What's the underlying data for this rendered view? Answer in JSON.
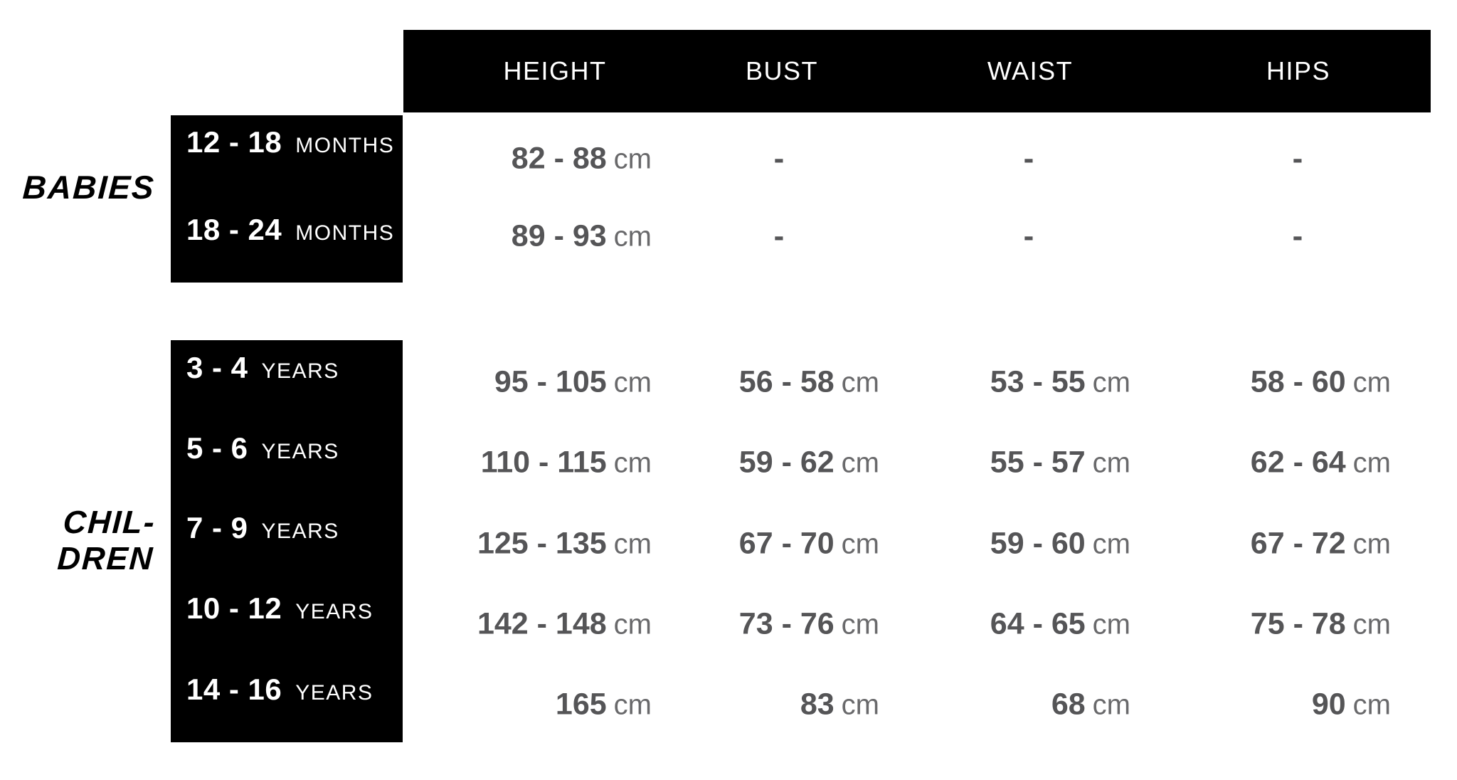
{
  "colors": {
    "background": "#ffffff",
    "header_bg": "#000000",
    "header_text": "#ffffff",
    "group_box_bg": "#000000",
    "group_box_text": "#ffffff",
    "value_number": "#555557",
    "value_unit": "#69696b",
    "section_label": "#000000"
  },
  "headers": [
    "HEIGHT",
    "BUST",
    "WAIST",
    "HIPS"
  ],
  "babies": {
    "section_label": "BABIES",
    "rows": [
      {
        "size": "12 - 18",
        "size_unit": "MONTHS",
        "height": "82 - 88",
        "height_unit": "cm",
        "bust": "-",
        "waist": "-",
        "hips": "-"
      },
      {
        "size": "18 - 24",
        "size_unit": "MONTHS",
        "height": "89 - 93",
        "height_unit": "cm",
        "bust": "-",
        "waist": "-",
        "hips": "-"
      }
    ]
  },
  "children": {
    "section_label_lines": [
      "CHIL-",
      "DREN"
    ],
    "rows": [
      {
        "size": "3 - 4",
        "size_unit": "YEARS",
        "height": "95 - 105",
        "height_unit": "cm",
        "bust": "56 - 58",
        "bust_unit": "cm",
        "waist": "53 - 55",
        "waist_unit": "cm",
        "hips": "58 - 60",
        "hips_unit": "cm"
      },
      {
        "size": "5 - 6",
        "size_unit": "YEARS",
        "height": "110 - 115",
        "height_unit": "cm",
        "bust": "59 - 62",
        "bust_unit": "cm",
        "waist": "55 - 57",
        "waist_unit": "cm",
        "hips": "62 - 64",
        "hips_unit": "cm"
      },
      {
        "size": "7 - 9",
        "size_unit": "YEARS",
        "height": "125 - 135",
        "height_unit": "cm",
        "bust": "67 - 70",
        "bust_unit": "cm",
        "waist": "59 - 60",
        "waist_unit": "cm",
        "hips": "67 - 72",
        "hips_unit": "cm"
      },
      {
        "size": "10 - 12",
        "size_unit": "YEARS",
        "height": "142 - 148",
        "height_unit": "cm",
        "bust": "73 - 76",
        "bust_unit": "cm",
        "waist": "64 - 65",
        "waist_unit": "cm",
        "hips": "75 - 78",
        "hips_unit": "cm"
      },
      {
        "size": "14 - 16",
        "size_unit": "YEARS",
        "height": "165",
        "height_unit": "cm",
        "bust": "83",
        "bust_unit": "cm",
        "waist": "68",
        "waist_unit": "cm",
        "hips": "90",
        "hips_unit": "cm"
      }
    ]
  }
}
